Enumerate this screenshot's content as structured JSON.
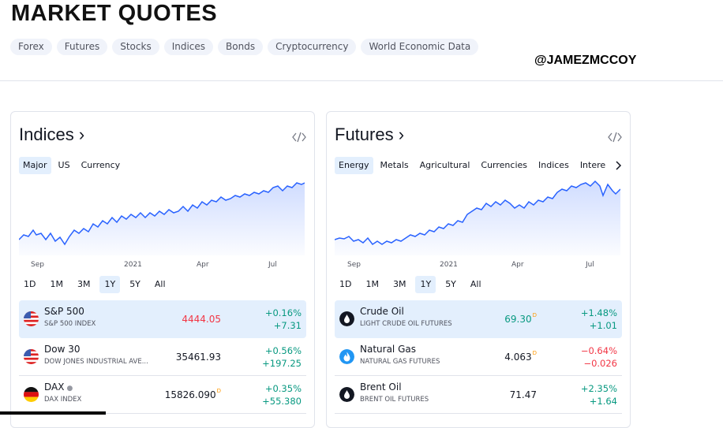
{
  "header": {
    "title": "MARKET QUOTES",
    "tabs": [
      "Forex",
      "Futures",
      "Stocks",
      "Indices",
      "Bonds",
      "Cryptocurrency",
      "World Economic Data"
    ],
    "handle": "@JAMEZMCCOY"
  },
  "colors": {
    "accent": "#2962ff",
    "positive": "#089981",
    "negative": "#f23645",
    "selected_bg": "#e3effd"
  },
  "indices": {
    "title": "Indices ›",
    "embed_icon": "code-icon",
    "subtabs": [
      "Major",
      "US",
      "Currency"
    ],
    "active_subtab": "Major",
    "axis_labels": [
      "Sep",
      "2021",
      "Apr",
      "Jul"
    ],
    "ranges": [
      "1D",
      "1M",
      "3M",
      "1Y",
      "5Y",
      "All"
    ],
    "active_range": "1Y",
    "rows": [
      {
        "name": "S&P 500",
        "desc": "S&P 500 INDEX",
        "price": "4444.05",
        "pct": "+0.16%",
        "chg": "+7.31",
        "flag": "us-flag-icon"
      },
      {
        "name": "Dow 30",
        "desc": "DOW JONES INDUSTRIAL AVE...",
        "price": "35461.93",
        "pct": "+0.56%",
        "chg": "+197.25",
        "flag": "us-flag-icon"
      },
      {
        "name": "DAX",
        "desc": "DAX INDEX",
        "price": "15826.090",
        "delay": "D",
        "pct": "+0.35%",
        "chg": "+55.380",
        "flag": "germany-flag-icon"
      }
    ]
  },
  "futures": {
    "title": "Futures ›",
    "embed_icon": "code-icon",
    "subtabs": [
      "Energy",
      "Metals",
      "Agricultural",
      "Currencies",
      "Indices",
      "Intere"
    ],
    "active_subtab": "Energy",
    "axis_labels": [
      "Sep",
      "2021",
      "Apr",
      "Jul"
    ],
    "ranges": [
      "1D",
      "1M",
      "3M",
      "1Y",
      "5Y",
      "All"
    ],
    "active_range": "1Y",
    "rows": [
      {
        "name": "Crude Oil",
        "desc": "LIGHT CRUDE OIL FUTURES",
        "price": "69.30",
        "delay": "D",
        "pct": "+1.48%",
        "chg": "+1.01",
        "icon": "oil-drop-icon"
      },
      {
        "name": "Natural Gas",
        "desc": "NATURAL GAS FUTURES",
        "price": "4.063",
        "delay": "D",
        "pct": "−0.64%",
        "chg": "−0.026",
        "icon": "flame-icon"
      },
      {
        "name": "Brent Oil",
        "desc": "BRENT OIL FUTURES",
        "price": "71.47",
        "pct": "+2.35%",
        "chg": "+1.64",
        "icon": "oil-drop-icon"
      }
    ]
  }
}
